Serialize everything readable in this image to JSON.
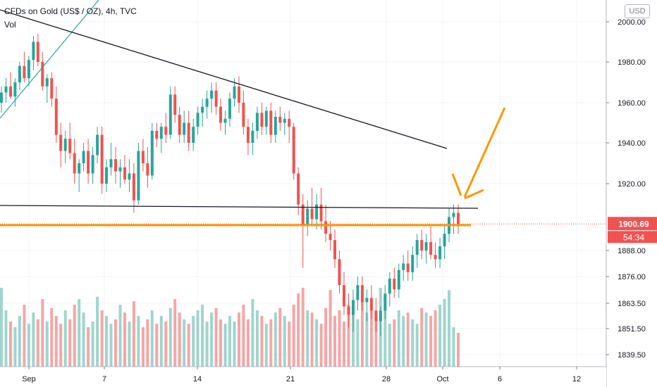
{
  "header": {
    "title": "CFDs on Gold (US$ / OZ), 4h, TVC",
    "volume_label": "Vol",
    "currency": "USD"
  },
  "price_badge": "1900.69",
  "countdown_badge": "54:34",
  "colors": {
    "up": "#26a69a",
    "down": "#ef5350",
    "vol_up": "#9fd5cd",
    "vol_down": "#f4a6a6",
    "orange": "#ff9800",
    "trendline": "#131722",
    "channel": "#26a69a"
  },
  "chart_data": {
    "type": "candlestick",
    "ylim": [
      1837,
      2005
    ],
    "y_ticks": [
      "2000.00",
      "1980.00",
      "1960.00",
      "1940.00",
      "1920.00",
      "1888.00",
      "1876.00",
      "1863.50",
      "1851.50",
      "1839.50"
    ],
    "x_ticks": [
      "Sep",
      "7",
      "14",
      "21",
      "28",
      "Oct",
      "6",
      "12"
    ],
    "last_price": 1900.69,
    "candles": [
      [
        1960,
        1968,
        1955,
        1965
      ],
      [
        1965,
        1972,
        1960,
        1968
      ],
      [
        1968,
        1975,
        1962,
        1963
      ],
      [
        1963,
        1972,
        1958,
        1970
      ],
      [
        1970,
        1980,
        1966,
        1978
      ],
      [
        1978,
        1985,
        1970,
        1972
      ],
      [
        1972,
        1983,
        1968,
        1981
      ],
      [
        1981,
        1993,
        1976,
        1990
      ],
      [
        1990,
        1994,
        1978,
        1980
      ],
      [
        1980,
        1985,
        1966,
        1968
      ],
      [
        1968,
        1974,
        1960,
        1972
      ],
      [
        1972,
        1975,
        1958,
        1962
      ],
      [
        1962,
        1968,
        1940,
        1944
      ],
      [
        1944,
        1950,
        1928,
        1936
      ],
      [
        1936,
        1946,
        1930,
        1942
      ],
      [
        1942,
        1950,
        1932,
        1935
      ],
      [
        1935,
        1942,
        1920,
        1925
      ],
      [
        1925,
        1932,
        1916,
        1930
      ],
      [
        1930,
        1940,
        1926,
        1936
      ],
      [
        1936,
        1942,
        1920,
        1925
      ],
      [
        1925,
        1938,
        1920,
        1934
      ],
      [
        1934,
        1948,
        1930,
        1944
      ],
      [
        1944,
        1948,
        1915,
        1920
      ],
      [
        1920,
        1932,
        1916,
        1928
      ],
      [
        1928,
        1940,
        1924,
        1932
      ],
      [
        1932,
        1938,
        1920,
        1926
      ],
      [
        1926,
        1932,
        1918,
        1928
      ],
      [
        1928,
        1934,
        1920,
        1922
      ],
      [
        1922,
        1932,
        1916,
        1925
      ],
      [
        1925,
        1930,
        1906,
        1912
      ],
      [
        1912,
        1940,
        1910,
        1936
      ],
      [
        1936,
        1942,
        1926,
        1930
      ],
      [
        1930,
        1938,
        1918,
        1924
      ],
      [
        1924,
        1950,
        1922,
        1946
      ],
      [
        1946,
        1950,
        1938,
        1942
      ],
      [
        1942,
        1950,
        1935,
        1948
      ],
      [
        1948,
        1955,
        1940,
        1944
      ],
      [
        1944,
        1968,
        1942,
        1964
      ],
      [
        1964,
        1968,
        1950,
        1954
      ],
      [
        1954,
        1958,
        1940,
        1944
      ],
      [
        1944,
        1956,
        1940,
        1950
      ],
      [
        1950,
        1956,
        1936,
        1940
      ],
      [
        1940,
        1952,
        1936,
        1948
      ],
      [
        1948,
        1958,
        1944,
        1955
      ],
      [
        1955,
        1962,
        1948,
        1958
      ],
      [
        1958,
        1966,
        1952,
        1962
      ],
      [
        1962,
        1970,
        1955,
        1966
      ],
      [
        1966,
        1970,
        1954,
        1958
      ],
      [
        1958,
        1962,
        1946,
        1950
      ],
      [
        1950,
        1956,
        1944,
        1952
      ],
      [
        1952,
        1965,
        1948,
        1962
      ],
      [
        1962,
        1972,
        1958,
        1968
      ],
      [
        1968,
        1973,
        1955,
        1960
      ],
      [
        1960,
        1966,
        1944,
        1948
      ],
      [
        1948,
        1952,
        1934,
        1940
      ],
      [
        1940,
        1950,
        1934,
        1946
      ],
      [
        1946,
        1958,
        1942,
        1955
      ],
      [
        1955,
        1960,
        1944,
        1948
      ],
      [
        1948,
        1958,
        1944,
        1956
      ],
      [
        1956,
        1960,
        1940,
        1944
      ],
      [
        1944,
        1956,
        1940,
        1953
      ],
      [
        1953,
        1958,
        1946,
        1950
      ],
      [
        1950,
        1955,
        1944,
        1952
      ],
      [
        1952,
        1956,
        1940,
        1948
      ],
      [
        1948,
        1950,
        1922,
        1925
      ],
      [
        1925,
        1928,
        1905,
        1910
      ],
      [
        1910,
        1915,
        1880,
        1900
      ],
      [
        1900,
        1912,
        1895,
        1908
      ],
      [
        1908,
        1918,
        1900,
        1903
      ],
      [
        1903,
        1915,
        1898,
        1910
      ],
      [
        1910,
        1918,
        1898,
        1902
      ],
      [
        1902,
        1910,
        1892,
        1896
      ],
      [
        1896,
        1902,
        1888,
        1893
      ],
      [
        1893,
        1898,
        1880,
        1884
      ],
      [
        1884,
        1888,
        1868,
        1872
      ],
      [
        1872,
        1878,
        1858,
        1862
      ],
      [
        1862,
        1868,
        1852,
        1858
      ],
      [
        1858,
        1870,
        1850,
        1865
      ],
      [
        1865,
        1876,
        1860,
        1872
      ],
      [
        1872,
        1876,
        1860,
        1864
      ],
      [
        1864,
        1870,
        1855,
        1866
      ],
      [
        1866,
        1872,
        1856,
        1860
      ],
      [
        1860,
        1866,
        1850,
        1855
      ],
      [
        1855,
        1862,
        1848,
        1860
      ],
      [
        1860,
        1872,
        1856,
        1868
      ],
      [
        1868,
        1878,
        1862,
        1875
      ],
      [
        1875,
        1880,
        1866,
        1870
      ],
      [
        1870,
        1882,
        1866,
        1879
      ],
      [
        1879,
        1886,
        1874,
        1882
      ],
      [
        1882,
        1888,
        1874,
        1878
      ],
      [
        1878,
        1890,
        1874,
        1886
      ],
      [
        1886,
        1896,
        1880,
        1893
      ],
      [
        1893,
        1898,
        1884,
        1888
      ],
      [
        1888,
        1896,
        1882,
        1892
      ],
      [
        1892,
        1900,
        1884,
        1886
      ],
      [
        1886,
        1892,
        1880,
        1884
      ],
      [
        1884,
        1894,
        1880,
        1890
      ],
      [
        1890,
        1900,
        1884,
        1896
      ],
      [
        1896,
        1908,
        1892,
        1904
      ],
      [
        1904,
        1910,
        1896,
        1906
      ],
      [
        1906,
        1910,
        1896,
        1900.69
      ]
    ],
    "volume": [
      70,
      50,
      40,
      35,
      45,
      55,
      38,
      48,
      42,
      60,
      40,
      52,
      45,
      38,
      50,
      42,
      55,
      60,
      48,
      35,
      40,
      62,
      50,
      45,
      38,
      42,
      55,
      48,
      40,
      58,
      45,
      35,
      42,
      50,
      38,
      45,
      40,
      52,
      60,
      48,
      42,
      38,
      45,
      50,
      55,
      40,
      48,
      52,
      42,
      38,
      45,
      40,
      48,
      55,
      42,
      60,
      50,
      45,
      38,
      42,
      48,
      52,
      45,
      40,
      55,
      65,
      70,
      50,
      48,
      42,
      38,
      52,
      68,
      45,
      50,
      40,
      55,
      48,
      42,
      60,
      48,
      52,
      45,
      70,
      55,
      38,
      42,
      50,
      45,
      48,
      42,
      38,
      52,
      48,
      45,
      50,
      55,
      60,
      68,
      35,
      30
    ]
  }
}
